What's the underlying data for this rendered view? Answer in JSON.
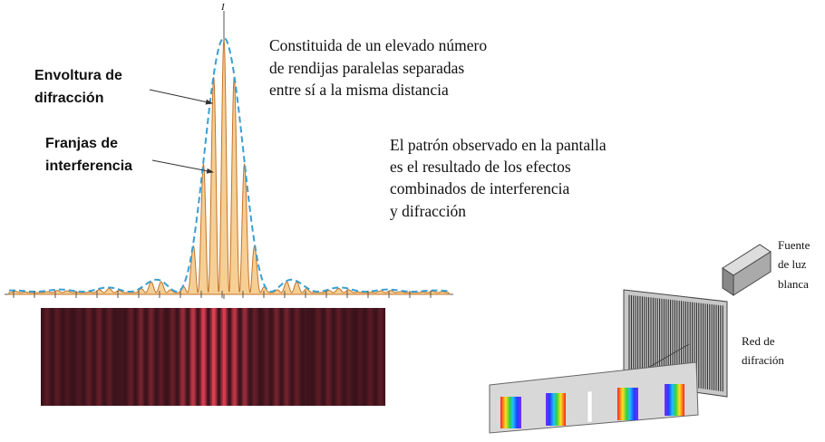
{
  "plot": {
    "axis_label": "I"
  },
  "labels": {
    "envelope": [
      "Envoltura de",
      "difracción"
    ],
    "fringes": [
      "Franjas de",
      "interferencia"
    ]
  },
  "description": {
    "grating": [
      "Constituida de un elevado número",
      "de rendijas paralelas separadas",
      "entre sí a la misma distancia"
    ],
    "pattern": [
      "El patrón observado en la pantalla",
      "es el resultado de los efectos",
      "combinados de interferencia",
      "y difracción"
    ]
  },
  "apparatus": {
    "source": [
      "Fuente",
      "de luz",
      "blanca"
    ],
    "grating": [
      "Red de",
      "difración"
    ]
  }
}
